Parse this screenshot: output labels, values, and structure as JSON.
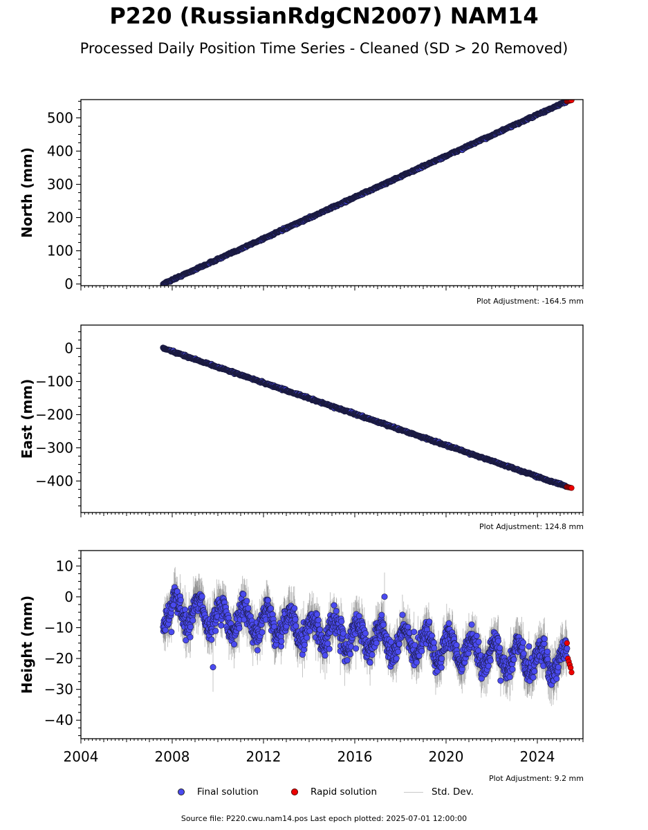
{
  "title": "P220 (RussianRdgCN2007) NAM14",
  "subtitle": "Processed Daily Position Time Series - Cleaned (SD > 20 Removed)",
  "colors": {
    "final": "#4a4af0",
    "rapid": "#ee0000",
    "stddev": "#c8c8c8"
  },
  "legend": {
    "final": "Final solution",
    "rapid": "Rapid solution",
    "stddev": "Std. Dev."
  },
  "footer": "Source file: P220.cwu.nam14.pos  Last epoch plotted: 2025-07-01 12:00:00",
  "chart_data": [
    {
      "type": "scatter",
      "ylabel": "North (mm)",
      "xlim": [
        2004,
        2026
      ],
      "ylim": [
        -5,
        555
      ],
      "yticks": [
        0,
        100,
        200,
        300,
        400,
        500
      ],
      "xticks": [],
      "adjustment": "Plot Adjustment: -164.5 mm",
      "series": [
        {
          "kind": "final",
          "x_range": [
            2007.6,
            2025.3
          ],
          "y_range": [
            0,
            550
          ],
          "noise_mm": 2
        },
        {
          "kind": "rapid",
          "x_range": [
            2025.3,
            2025.5
          ],
          "y_range": [
            550,
            553
          ],
          "noise_mm": 1
        }
      ]
    },
    {
      "type": "scatter",
      "ylabel": "East (mm)",
      "xlim": [
        2004,
        2026
      ],
      "ylim": [
        -495,
        70
      ],
      "yticks": [
        0,
        -100,
        -200,
        -300,
        -400
      ],
      "xticks": [],
      "adjustment": "Plot Adjustment: 124.8 mm",
      "series": [
        {
          "kind": "final",
          "x_range": [
            2007.6,
            2025.3
          ],
          "y_range": [
            0,
            -417
          ],
          "noise_mm": 2
        },
        {
          "kind": "rapid",
          "x_range": [
            2025.3,
            2025.5
          ],
          "y_range": [
            -418,
            -421
          ],
          "noise_mm": 1
        }
      ]
    },
    {
      "type": "scatter",
      "ylabel": "Height (mm)",
      "xlim": [
        2004,
        2026
      ],
      "ylim": [
        -46,
        15
      ],
      "yticks": [
        10,
        0,
        -10,
        -20,
        -30,
        -40
      ],
      "xticks": [
        2004,
        2008,
        2012,
        2016,
        2020,
        2024
      ],
      "adjustment": "Plot Adjustment: 9.2 mm",
      "series": [
        {
          "kind": "final",
          "x_range": [
            2007.6,
            2025.3
          ],
          "y_range": [
            -4,
            -22
          ],
          "noise_mm": 6
        },
        {
          "kind": "rapid",
          "x_range": [
            2025.3,
            2025.5
          ],
          "values": [
            -15,
            -20,
            -21,
            -22,
            -23,
            -24.5
          ]
        }
      ]
    }
  ]
}
